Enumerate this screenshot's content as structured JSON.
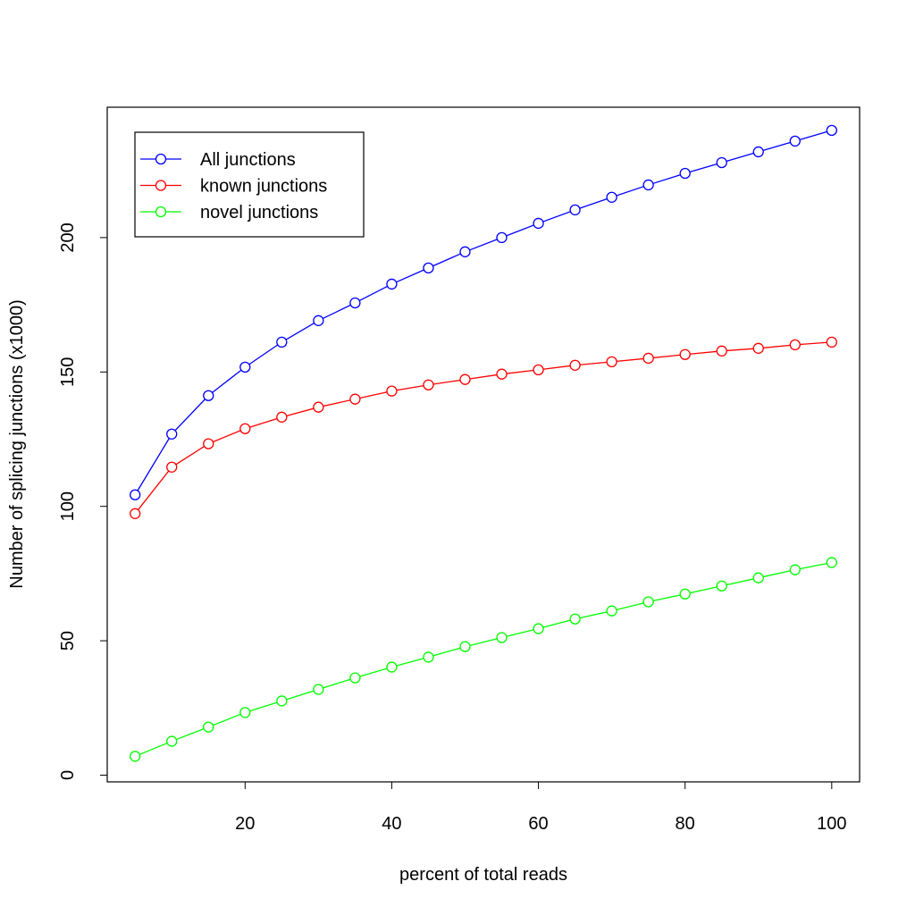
{
  "chart_data": {
    "type": "line",
    "x_label": "percent of total reads",
    "y_label": "Number of splicing junctions (x1000)",
    "x": [
      5,
      10,
      15,
      20,
      25,
      30,
      35,
      40,
      45,
      50,
      55,
      60,
      65,
      70,
      75,
      80,
      85,
      90,
      95,
      100
    ],
    "series": [
      {
        "name": "All junctions",
        "color": "#0000ff",
        "values": [
          104.3,
          126.9,
          141.2,
          151.8,
          161.1,
          169.1,
          175.7,
          182.7,
          188.7,
          194.7,
          200.0,
          205.3,
          210.3,
          215.0,
          219.6,
          223.9,
          227.9,
          231.9,
          235.9,
          239.9
        ]
      },
      {
        "name": "known junctions",
        "color": "#ff0000",
        "values": [
          97.3,
          114.6,
          123.3,
          128.9,
          133.2,
          136.9,
          139.9,
          142.9,
          145.2,
          147.2,
          149.2,
          150.8,
          152.5,
          153.8,
          155.1,
          156.5,
          157.8,
          158.8,
          160.1,
          161.1
        ]
      },
      {
        "name": "novel junctions",
        "color": "#00ff00",
        "values": [
          7.0,
          12.6,
          17.9,
          23.3,
          27.6,
          31.9,
          36.2,
          40.2,
          43.9,
          47.8,
          51.2,
          54.5,
          58.1,
          61.1,
          64.5,
          67.4,
          70.4,
          73.4,
          76.4,
          79.1
        ]
      }
    ],
    "xlim": [
      1.2,
      103.8
    ],
    "xticks": [
      20,
      40,
      60,
      80,
      100
    ],
    "ylim": [
      -2.5,
      248.5
    ],
    "yticks": [
      0,
      50,
      100,
      150,
      200
    ],
    "grid": false,
    "legend": "top-left"
  }
}
